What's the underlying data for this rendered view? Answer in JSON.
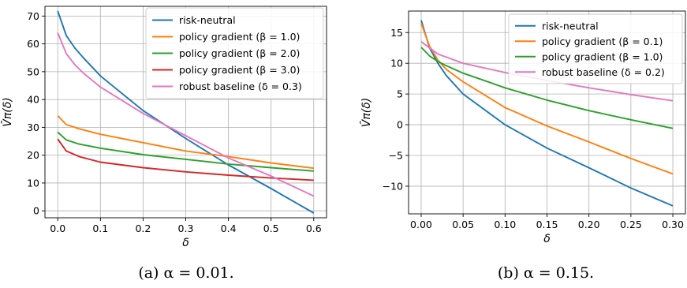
{
  "captions": [
    "(a) α = 0.01.",
    "(b) α = 0.15."
  ],
  "chart_data": [
    {
      "type": "line",
      "xlabel": "δ",
      "ylabel": "V̂π(δ)",
      "xlim": [
        -0.03,
        0.63
      ],
      "ylim": [
        -2.5,
        73.5
      ],
      "xticks": [
        0.0,
        0.1,
        0.2,
        0.3,
        0.4,
        0.5,
        0.6
      ],
      "xtick_labels": [
        "0.0",
        "0.1",
        "0.2",
        "0.3",
        "0.4",
        "0.5",
        "0.6"
      ],
      "yticks": [
        0,
        10,
        20,
        30,
        40,
        50,
        60,
        70
      ],
      "ytick_labels": [
        "0",
        "10",
        "20",
        "30",
        "40",
        "50",
        "60",
        "70"
      ],
      "grid": true,
      "legend_position": "top-right",
      "series": [
        {
          "name": "risk-neutral",
          "color": "#1f77b4",
          "x": [
            0.0,
            0.02,
            0.04,
            0.06,
            0.1,
            0.2,
            0.3,
            0.4,
            0.5,
            0.6
          ],
          "y": [
            71.8,
            63.0,
            58.5,
            55.0,
            48.5,
            36.0,
            26.0,
            16.5,
            8.0,
            -0.8
          ]
        },
        {
          "name": "policy gradient (β = 1.0)",
          "color": "#ff7f0e",
          "x": [
            0.0,
            0.02,
            0.05,
            0.1,
            0.2,
            0.3,
            0.4,
            0.5,
            0.6
          ],
          "y": [
            34.2,
            31.0,
            29.5,
            27.5,
            24.5,
            21.5,
            19.5,
            17.2,
            15.3
          ]
        },
        {
          "name": "policy gradient (β = 2.0)",
          "color": "#2ca02c",
          "x": [
            0.0,
            0.02,
            0.05,
            0.1,
            0.2,
            0.3,
            0.4,
            0.5,
            0.6
          ],
          "y": [
            28.3,
            25.5,
            24.0,
            22.5,
            20.2,
            18.5,
            16.8,
            15.5,
            14.3
          ]
        },
        {
          "name": "policy gradient (β = 3.0)",
          "color": "#d62728",
          "x": [
            0.0,
            0.02,
            0.05,
            0.1,
            0.2,
            0.3,
            0.4,
            0.5,
            0.6
          ],
          "y": [
            25.8,
            21.5,
            19.5,
            17.5,
            15.5,
            14.0,
            12.8,
            11.8,
            11.0
          ]
        },
        {
          "name": "robust baseline (δ = 0.3)",
          "color": "#e377c2",
          "x": [
            0.0,
            0.02,
            0.04,
            0.06,
            0.1,
            0.2,
            0.3,
            0.4,
            0.5,
            0.6
          ],
          "y": [
            64.0,
            56.5,
            52.5,
            49.5,
            44.5,
            35.0,
            27.0,
            19.0,
            12.5,
            5.3
          ]
        }
      ]
    },
    {
      "type": "line",
      "xlabel": "δ",
      "ylabel": "V̂π(δ)",
      "xlim": [
        -0.015,
        0.315
      ],
      "ylim": [
        -14.5,
        18.5
      ],
      "xticks": [
        0.0,
        0.05,
        0.1,
        0.15,
        0.2,
        0.25,
        0.3
      ],
      "xtick_labels": [
        "0.00",
        "0.05",
        "0.10",
        "0.15",
        "0.20",
        "0.25",
        "0.30"
      ],
      "yticks": [
        -10,
        -5,
        0,
        5,
        10,
        15
      ],
      "ytick_labels": [
        "−10",
        "−5",
        "0",
        "5",
        "10",
        "15"
      ],
      "grid": true,
      "legend_position": "top-right",
      "series": [
        {
          "name": "risk-neutral",
          "color": "#1f77b4",
          "x": [
            0.0,
            0.01,
            0.02,
            0.03,
            0.05,
            0.1,
            0.15,
            0.2,
            0.25,
            0.3
          ],
          "y": [
            17.0,
            12.5,
            10.0,
            8.0,
            5.0,
            0.0,
            -3.8,
            -7.0,
            -10.3,
            -13.2
          ]
        },
        {
          "name": "policy gradient (β = 0.1)",
          "color": "#ff7f0e",
          "x": [
            0.0,
            0.01,
            0.02,
            0.03,
            0.05,
            0.1,
            0.15,
            0.2,
            0.25,
            0.3
          ],
          "y": [
            16.5,
            12.8,
            10.5,
            9.0,
            7.0,
            2.8,
            -0.2,
            -2.8,
            -5.5,
            -8.0
          ]
        },
        {
          "name": "policy gradient (β = 1.0)",
          "color": "#2ca02c",
          "x": [
            0.0,
            0.01,
            0.02,
            0.03,
            0.05,
            0.1,
            0.15,
            0.2,
            0.25,
            0.3
          ],
          "y": [
            12.6,
            11.2,
            10.3,
            9.6,
            8.4,
            6.0,
            4.0,
            2.3,
            0.8,
            -0.6
          ]
        },
        {
          "name": "robust baseline (δ = 0.2)",
          "color": "#e377c2",
          "x": [
            0.0,
            0.01,
            0.02,
            0.03,
            0.05,
            0.1,
            0.15,
            0.2,
            0.25,
            0.3
          ],
          "y": [
            13.5,
            12.5,
            11.5,
            11.0,
            10.0,
            8.5,
            7.2,
            6.0,
            4.9,
            3.9
          ]
        }
      ]
    }
  ]
}
